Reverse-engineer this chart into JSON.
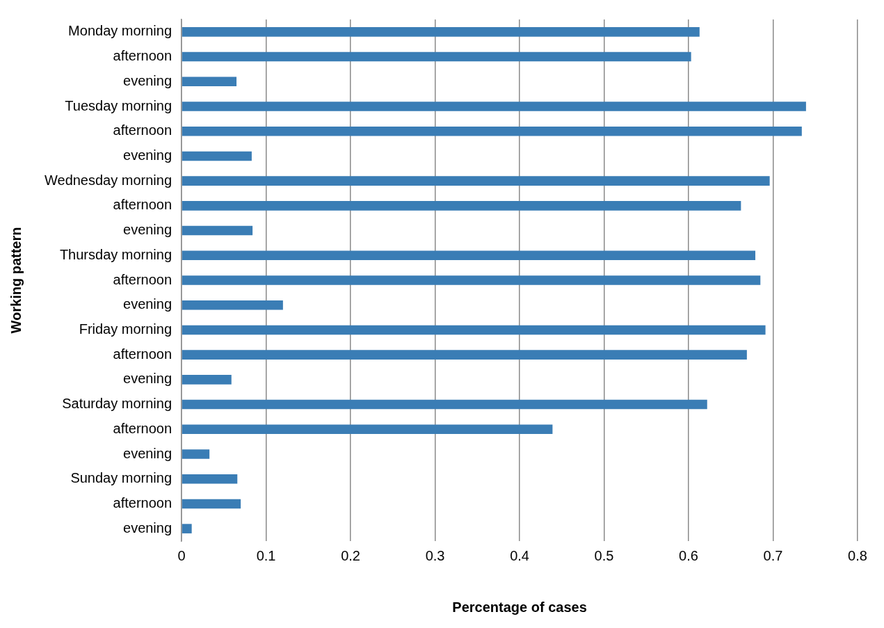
{
  "chart_data": {
    "type": "bar",
    "orientation": "horizontal",
    "xlabel": "Percentage of cases",
    "ylabel": "Working pattern",
    "categories": [
      "Monday morning",
      "afternoon",
      "evening",
      "Tuesday morning",
      "afternoon",
      "evening",
      "Wednesday morning",
      "afternoon",
      "evening",
      "Thursday morning",
      "afternoon",
      "evening",
      "Friday morning",
      "afternoon",
      "evening",
      "Saturday morning",
      "afternoon",
      "evening",
      "Sunday morning",
      "afternoon",
      "evening"
    ],
    "values": [
      0.613,
      0.603,
      0.065,
      0.739,
      0.734,
      0.083,
      0.696,
      0.662,
      0.084,
      0.679,
      0.685,
      0.12,
      0.691,
      0.669,
      0.059,
      0.622,
      0.439,
      0.033,
      0.066,
      0.07,
      0.012
    ],
    "color": "#3a7db5",
    "xlim": [
      0,
      0.8
    ],
    "xticks": [
      0,
      0.1,
      0.2,
      0.3,
      0.4,
      0.5,
      0.6,
      0.7,
      0.8
    ],
    "grid": "x",
    "legend": false
  }
}
